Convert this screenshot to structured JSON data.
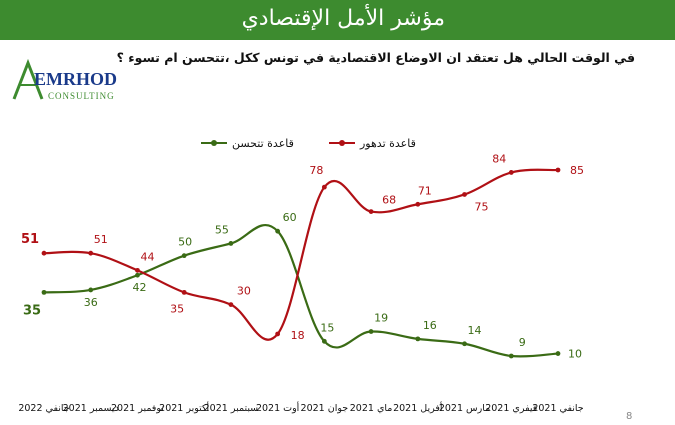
{
  "header": {
    "title": "مؤشر الأمل الإقتصادي"
  },
  "question": "في الوقت الحالي هل تعتقد ان الاوضاع الاقتصادية في تونس ككل ،تتحسن ام تسوء ؟",
  "logo": {
    "brand": "EMRHOD",
    "sub": "CONSULTING"
  },
  "page_number": "8",
  "colors": {
    "header_bg": "#3d8b2f",
    "green": "#3a6b15",
    "red": "#b01015"
  },
  "chart_data": {
    "type": "line",
    "categories": [
      "جانفي 2022",
      "ديسمبر 2021",
      "نوفمبر 2021",
      "أكتوبر 2021",
      "سبتمبر 2021",
      "أوت 2021",
      "جوان 2021",
      "ماي 2021",
      "أفريل 2021",
      "مارس 2021",
      "فيفري 2021",
      "جانفي 2021"
    ],
    "series": [
      {
        "name": "قاعدة تتحسن",
        "values": [
          35,
          36,
          42,
          50,
          55,
          60,
          15,
          19,
          16,
          14,
          9,
          10
        ]
      },
      {
        "name": "قاعدة تدهور",
        "values": [
          51,
          51,
          44,
          35,
          30,
          18,
          78,
          68,
          71,
          75,
          84,
          85
        ]
      }
    ],
    "title": "",
    "xlabel": "",
    "ylabel": "",
    "ylim": [
      0,
      100
    ],
    "grid": false,
    "legend": "top"
  }
}
